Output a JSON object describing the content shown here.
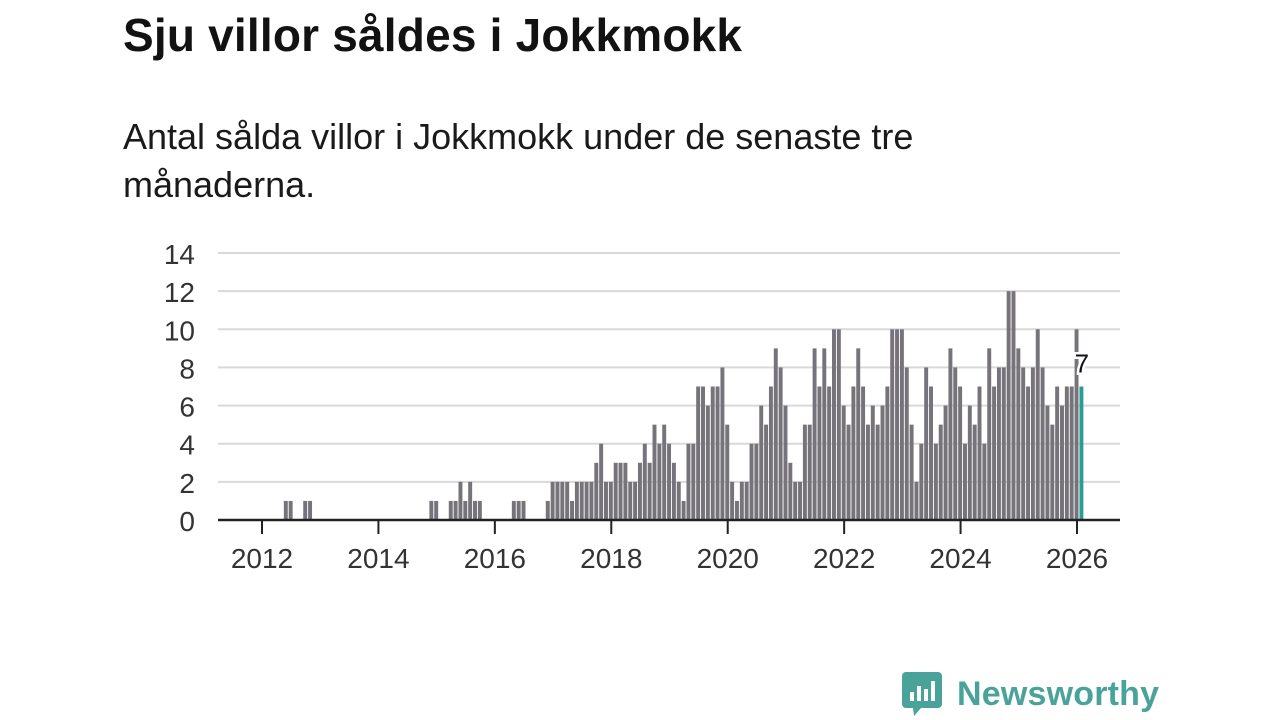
{
  "chart_data": {
    "type": "bar",
    "title": "Sju villor såldes i Jokkmokk",
    "subtitle": "Antal sålda villor i Jokkmokk under de senaste tre månaderna.",
    "xlabel": "",
    "ylabel": "",
    "ylim": [
      0,
      14
    ],
    "yticks": [
      "0",
      "2",
      "4",
      "6",
      "8",
      "10",
      "12",
      "14"
    ],
    "xticks": [
      "2012",
      "2014",
      "2016",
      "2018",
      "2020",
      "2022",
      "2024",
      "2026"
    ],
    "grid": true,
    "start": "2011-12",
    "values": [
      0,
      0,
      0,
      0,
      0,
      0,
      1,
      1,
      0,
      0,
      1,
      1,
      0,
      0,
      0,
      0,
      0,
      0,
      0,
      0,
      0,
      0,
      0,
      0,
      0,
      0,
      0,
      0,
      0,
      0,
      0,
      0,
      0,
      0,
      0,
      0,
      1,
      1,
      0,
      0,
      1,
      1,
      2,
      1,
      2,
      1,
      1,
      0,
      0,
      0,
      0,
      0,
      0,
      1,
      1,
      1,
      0,
      0,
      0,
      0,
      1,
      2,
      2,
      2,
      2,
      1,
      2,
      2,
      2,
      2,
      3,
      4,
      2,
      2,
      3,
      3,
      3,
      2,
      2,
      3,
      4,
      3,
      5,
      4,
      5,
      4,
      3,
      2,
      1,
      4,
      4,
      7,
      7,
      6,
      7,
      7,
      8,
      5,
      2,
      1,
      2,
      2,
      4,
      4,
      6,
      5,
      7,
      9,
      8,
      6,
      3,
      2,
      2,
      5,
      5,
      9,
      7,
      9,
      7,
      10,
      10,
      6,
      5,
      7,
      9,
      7,
      5,
      6,
      5,
      6,
      7,
      10,
      10,
      10,
      8,
      5,
      2,
      4,
      8,
      7,
      4,
      5,
      6,
      9,
      8,
      7,
      4,
      6,
      5,
      7,
      4,
      9,
      7,
      8,
      8,
      12,
      12,
      9,
      8,
      7,
      8,
      10,
      8,
      6,
      5,
      7,
      6,
      7,
      7,
      10,
      7
    ],
    "highlight": {
      "label": "7",
      "value": 7
    },
    "colors": {
      "bar": "#76747a",
      "highlight": "#2a9d95",
      "grid": "#d9d9d9",
      "axis": "#222222",
      "text": "#333333"
    }
  },
  "brand": {
    "name": "Newsworthy",
    "color": "#4aa39a"
  }
}
